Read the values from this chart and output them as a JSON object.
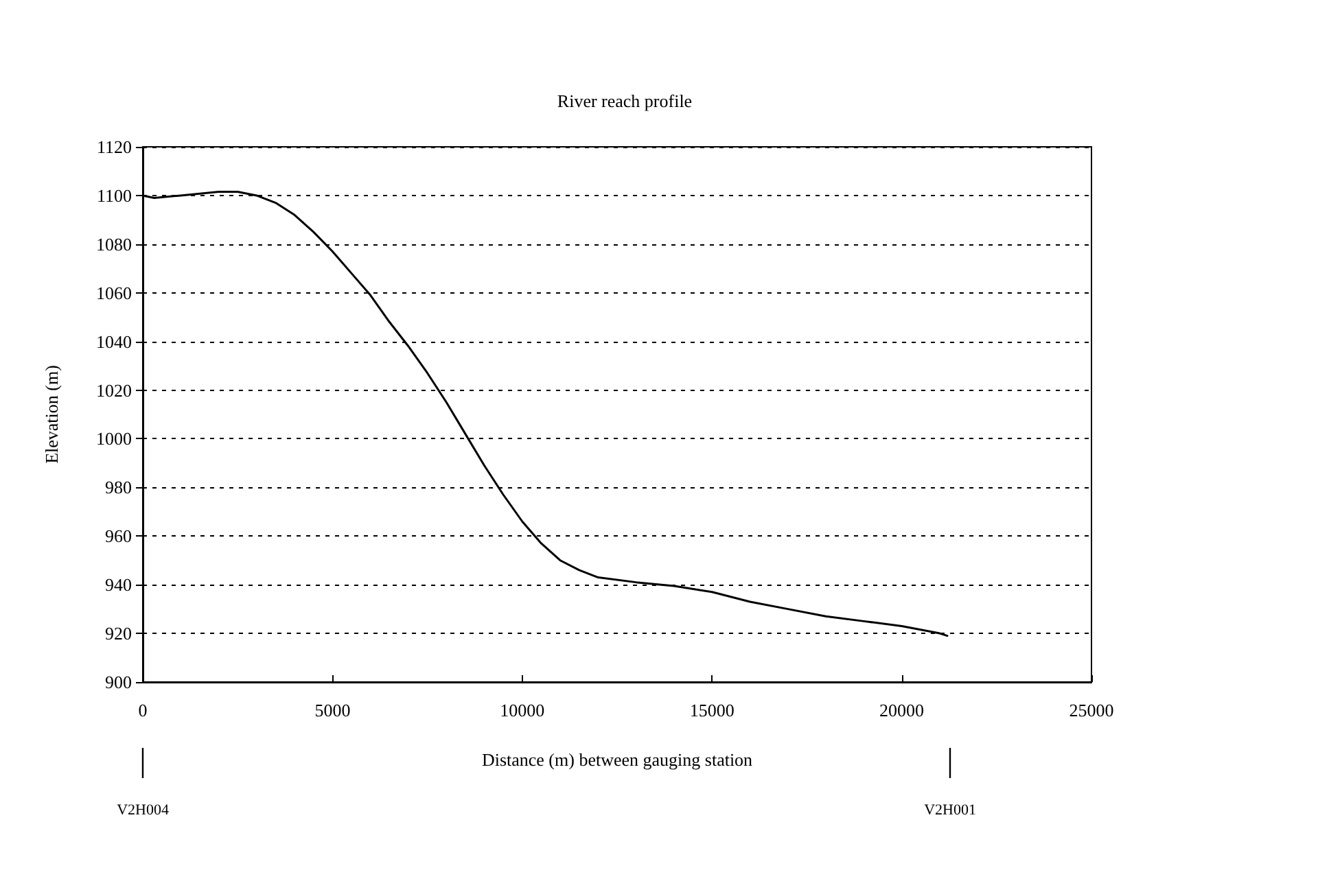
{
  "chart_data": {
    "type": "line",
    "title": "River reach profile",
    "xlabel": "Distance (m) between gauging station",
    "ylabel": "Elevation (m)",
    "annotations": [
      "V2H004",
      "V2H001"
    ],
    "series": [
      {
        "color": "#000000",
        "x": [
          0,
          300,
          1000,
          2000,
          2500,
          3000,
          3500,
          4000,
          4500,
          5000,
          5500,
          6000,
          6500,
          7000,
          7500,
          8000,
          8500,
          9000,
          9500,
          10000,
          10500,
          11000,
          11500,
          12000,
          13000,
          14000,
          15000,
          16000,
          17000,
          18000,
          19000,
          20000,
          21000,
          21200
        ],
        "values": [
          1100,
          1099,
          1100,
          1101.5,
          1101.5,
          1100,
          1097,
          1092,
          1085,
          1077,
          1068,
          1059,
          1048,
          1038,
          1027,
          1015,
          1002,
          989,
          977,
          966,
          957,
          950,
          946,
          943,
          941,
          939.5,
          937,
          933,
          930,
          927,
          925,
          923,
          920,
          919
        ]
      }
    ],
    "xlim": [
      0,
      25000
    ],
    "xticks": [
      0,
      5000,
      10000,
      15000,
      20000,
      25000
    ],
    "ylim": [
      900,
      1120
    ],
    "yticks": [
      900,
      920,
      940,
      960,
      980,
      1000,
      1020,
      1040,
      1060,
      1080,
      1100,
      1120
    ],
    "grid": "y",
    "marker": "none",
    "line_style": "solid"
  }
}
